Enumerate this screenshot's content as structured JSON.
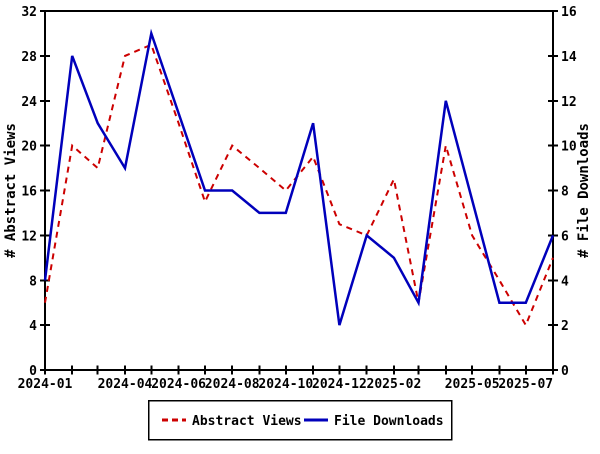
{
  "chart_data": {
    "type": "line",
    "title": "",
    "x_axis": {
      "type": "time",
      "start": "2024-01",
      "end": "2025-08",
      "tick_interval": "1 month",
      "labeled_ticks": [
        "2024-01",
        "2024-04",
        "2024-06",
        "2024-08",
        "2024-10",
        "2024-12",
        "2025-02",
        "2025-05",
        "2025-07"
      ]
    },
    "y_axis_left": {
      "label": "# Abstract Views",
      "min": 0,
      "max": 32,
      "tick_step": 4
    },
    "y_axis_right": {
      "label": "# File Downloads",
      "min": 0,
      "max": 16,
      "tick_step": 2
    },
    "grid": false,
    "legend": {
      "position": "bottom-center",
      "border": true
    },
    "series": [
      {
        "name": "Abstract Views",
        "axis": "left",
        "color": "#cc0000",
        "line_style": "dashed",
        "points": [
          [
            "2024-01",
            6
          ],
          [
            "2024-02",
            20
          ],
          [
            "2024-03",
            18
          ],
          [
            "2024-04",
            28
          ],
          [
            "2024-05",
            29
          ],
          [
            "2024-06",
            22
          ],
          [
            "2024-07",
            15
          ],
          [
            "2024-08",
            20
          ],
          [
            "2024-09",
            18
          ],
          [
            "2024-10",
            16
          ],
          [
            "2024-11",
            19
          ],
          [
            "2024-12",
            13
          ],
          [
            "2025-01",
            12
          ],
          [
            "2025-02",
            17
          ],
          [
            "2025-03",
            6
          ],
          [
            "2025-04",
            20
          ],
          [
            "2025-05",
            12
          ],
          [
            "2025-06",
            8
          ],
          [
            "2025-07",
            4
          ],
          [
            "2025-08",
            10
          ]
        ]
      },
      {
        "name": "File Downloads",
        "axis": "right",
        "color": "#0000bb",
        "line_style": "solid",
        "points": [
          [
            "2024-01",
            4
          ],
          [
            "2024-02",
            14
          ],
          [
            "2024-03",
            11
          ],
          [
            "2024-04",
            9
          ],
          [
            "2024-05",
            15
          ],
          [
            "2024-07",
            8
          ],
          [
            "2024-08",
            8
          ],
          [
            "2024-09",
            7
          ],
          [
            "2024-10",
            7
          ],
          [
            "2024-11",
            11
          ],
          [
            "2024-12",
            2
          ],
          [
            "2025-01",
            6
          ],
          [
            "2025-02",
            5
          ],
          [
            "2025-03",
            3
          ],
          [
            "2025-04",
            12
          ],
          [
            "2025-06",
            3
          ],
          [
            "2025-07",
            3
          ],
          [
            "2025-08",
            6
          ]
        ]
      }
    ]
  }
}
